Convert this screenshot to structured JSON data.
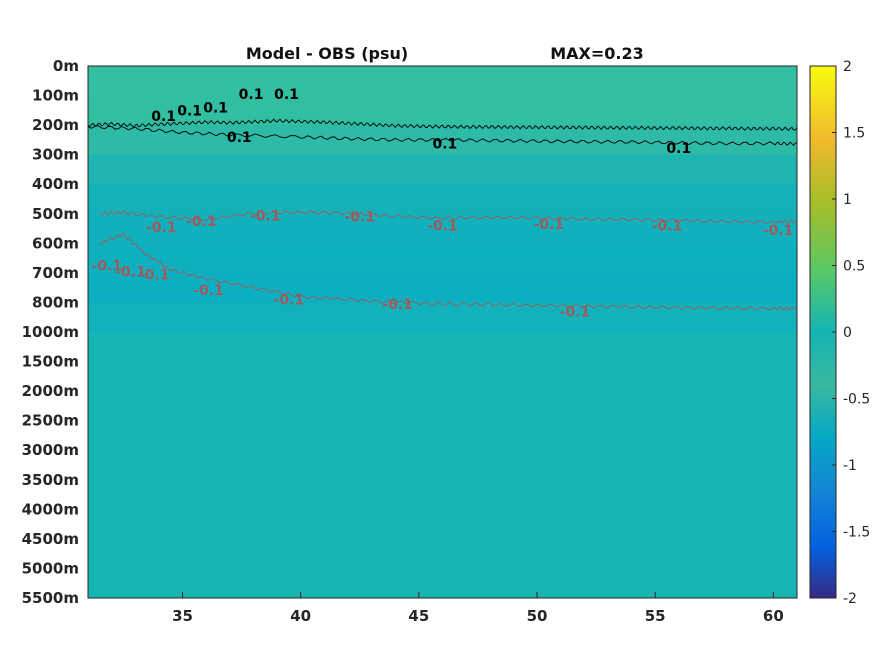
{
  "chart_data": {
    "type": "heatmap",
    "title": "Model - OBS (psu)",
    "max_label": "MAX=0.23",
    "xlabel": "",
    "ylabel": "",
    "x_ticks": [
      "35",
      "40",
      "45",
      "50",
      "55",
      "60"
    ],
    "x_tick_values": [
      35,
      40,
      45,
      50,
      55,
      60
    ],
    "xlim": [
      31,
      61
    ],
    "y_ticks": [
      "0m",
      "100m",
      "200m",
      "300m",
      "400m",
      "500m",
      "600m",
      "700m",
      "800m",
      "1000m",
      "1500m",
      "2000m",
      "2500m",
      "3000m",
      "3500m",
      "4000m",
      "4500m",
      "5000m",
      "5500m"
    ],
    "depth_values": [
      0,
      100,
      200,
      300,
      400,
      500,
      600,
      700,
      800,
      1000,
      1500,
      2000,
      2500,
      3000,
      3500,
      4000,
      4500,
      5000,
      5500
    ],
    "colorbar_ticks": [
      "2",
      "1.5",
      "1",
      "0.5",
      "0",
      "-0.5",
      "-1",
      "-1.5",
      "-2"
    ],
    "colorbar_values": [
      2,
      1.5,
      1,
      0.5,
      0,
      -0.5,
      -1,
      -1.5,
      -2
    ],
    "clim": [
      -2,
      2
    ],
    "colormap": "parula",
    "field_bands": [
      {
        "depth_from": 0,
        "depth_to": 100,
        "value": 0.13,
        "color": "#33bfa0"
      },
      {
        "depth_from": 100,
        "depth_to": 200,
        "value": 0.12,
        "color": "#31bea1"
      },
      {
        "depth_from": 200,
        "depth_to": 300,
        "value": 0.08,
        "color": "#2dbaa6"
      },
      {
        "depth_from": 300,
        "depth_to": 400,
        "value": 0.02,
        "color": "#1eb5b2"
      },
      {
        "depth_from": 400,
        "depth_to": 500,
        "value": -0.01,
        "color": "#14b2b8"
      },
      {
        "depth_from": 500,
        "depth_to": 600,
        "value": -0.04,
        "color": "#10b0bd"
      },
      {
        "depth_from": 600,
        "depth_to": 700,
        "value": -0.05,
        "color": "#0eafbf"
      },
      {
        "depth_from": 700,
        "depth_to": 800,
        "value": -0.06,
        "color": "#0cafc2"
      },
      {
        "depth_from": 800,
        "depth_to": 1000,
        "value": -0.03,
        "color": "#12b2bc"
      },
      {
        "depth_from": 1000,
        "depth_to": 5500,
        "value": 0.0,
        "color": "#17b4b4"
      }
    ],
    "contours": [
      {
        "level": 0.1,
        "color": "#000000",
        "points": [
          [
            31.0,
            200
          ],
          [
            32,
            196
          ],
          [
            33,
            202
          ],
          [
            34,
            197
          ],
          [
            35,
            194
          ],
          [
            36,
            190
          ],
          [
            37,
            192
          ],
          [
            38,
            189
          ],
          [
            39,
            185
          ],
          [
            40,
            188
          ],
          [
            41,
            190
          ],
          [
            42,
            194
          ],
          [
            43,
            198
          ],
          [
            44,
            202
          ],
          [
            45,
            204
          ],
          [
            46,
            205
          ],
          [
            47,
            206
          ],
          [
            48,
            206
          ],
          [
            49,
            207
          ],
          [
            50,
            207
          ],
          [
            51,
            208
          ],
          [
            52,
            208
          ],
          [
            53,
            209
          ],
          [
            54,
            209
          ],
          [
            55,
            210
          ],
          [
            56,
            210
          ],
          [
            57,
            211
          ],
          [
            58,
            211
          ],
          [
            59,
            212
          ],
          [
            60,
            212
          ],
          [
            61,
            213
          ]
        ]
      },
      {
        "level": 0.1,
        "color": "#000000",
        "points": [
          [
            31.0,
            205
          ],
          [
            33,
            212
          ],
          [
            35,
            225
          ],
          [
            37,
            233
          ],
          [
            40,
            240
          ],
          [
            42,
            246
          ],
          [
            44,
            250
          ],
          [
            46,
            250
          ],
          [
            48,
            252
          ],
          [
            50,
            254
          ],
          [
            52,
            256
          ],
          [
            54,
            257
          ],
          [
            56,
            260
          ],
          [
            58,
            262
          ],
          [
            60,
            262
          ],
          [
            61,
            263
          ]
        ]
      },
      {
        "level": -0.1,
        "color": "#a05a5a",
        "points": [
          [
            31.5,
            500
          ],
          [
            32.5,
            496
          ],
          [
            34,
            510
          ],
          [
            36,
            520
          ],
          [
            38,
            498
          ],
          [
            40,
            495
          ],
          [
            42,
            498
          ],
          [
            44,
            508
          ],
          [
            46,
            515
          ],
          [
            48,
            512
          ],
          [
            50,
            514
          ],
          [
            52,
            518
          ],
          [
            54,
            520
          ],
          [
            56,
            522
          ],
          [
            58,
            526
          ],
          [
            60,
            528
          ],
          [
            61,
            525
          ]
        ]
      },
      {
        "level": -0.1,
        "color": "#a05a5a",
        "points": [
          [
            31.5,
            600
          ],
          [
            32.5,
            570
          ],
          [
            33.5,
            640
          ],
          [
            34.5,
            690
          ],
          [
            36,
            720
          ],
          [
            38,
            750
          ],
          [
            40,
            780
          ],
          [
            42,
            790
          ],
          [
            44,
            800
          ],
          [
            46,
            810
          ],
          [
            48,
            815
          ],
          [
            50,
            820
          ],
          [
            52,
            825
          ],
          [
            54,
            830
          ],
          [
            56,
            835
          ],
          [
            58,
            838
          ],
          [
            60,
            840
          ],
          [
            61,
            842
          ]
        ]
      }
    ],
    "contour_labels": [
      {
        "text": "0.1",
        "x": 34.2,
        "depth": 170,
        "color": "#000000"
      },
      {
        "text": "0.1",
        "x": 35.3,
        "depth": 150,
        "color": "#000000"
      },
      {
        "text": "0.1",
        "x": 36.4,
        "depth": 140,
        "color": "#000000"
      },
      {
        "text": "0.1",
        "x": 37.9,
        "depth": 95,
        "color": "#000000"
      },
      {
        "text": "0.1",
        "x": 39.4,
        "depth": 95,
        "color": "#000000"
      },
      {
        "text": "0.1",
        "x": 37.4,
        "depth": 240,
        "color": "#000000"
      },
      {
        "text": "0.1",
        "x": 46.1,
        "depth": 263,
        "color": "#000000"
      },
      {
        "text": "0.1",
        "x": 56.0,
        "depth": 278,
        "color": "#000000"
      },
      {
        "text": "-0.1",
        "x": 34.1,
        "depth": 545,
        "color": "#a05a5a"
      },
      {
        "text": "-0.1",
        "x": 35.8,
        "depth": 525,
        "color": "#a05a5a"
      },
      {
        "text": "-0.1",
        "x": 38.5,
        "depth": 505,
        "color": "#a05a5a"
      },
      {
        "text": "-0.1",
        "x": 42.5,
        "depth": 510,
        "color": "#a05a5a"
      },
      {
        "text": "-0.1",
        "x": 46.0,
        "depth": 540,
        "color": "#a05a5a"
      },
      {
        "text": "-0.1",
        "x": 50.5,
        "depth": 535,
        "color": "#a05a5a"
      },
      {
        "text": "-0.1",
        "x": 55.5,
        "depth": 540,
        "color": "#a05a5a"
      },
      {
        "text": "-0.1",
        "x": 60.2,
        "depth": 555,
        "color": "#a05a5a"
      },
      {
        "text": "-0.1",
        "x": 31.8,
        "depth": 675,
        "color": "#a05a5a"
      },
      {
        "text": "-0.1",
        "x": 32.8,
        "depth": 695,
        "color": "#a05a5a"
      },
      {
        "text": "-0.1",
        "x": 33.8,
        "depth": 705,
        "color": "#a05a5a"
      },
      {
        "text": "-0.1",
        "x": 36.1,
        "depth": 758,
        "color": "#a05a5a"
      },
      {
        "text": "-0.1",
        "x": 39.5,
        "depth": 790,
        "color": "#a05a5a"
      },
      {
        "text": "-0.1",
        "x": 44.1,
        "depth": 810,
        "color": "#a05a5a"
      },
      {
        "text": "-0.1",
        "x": 51.6,
        "depth": 860,
        "color": "#a05a5a"
      }
    ]
  }
}
